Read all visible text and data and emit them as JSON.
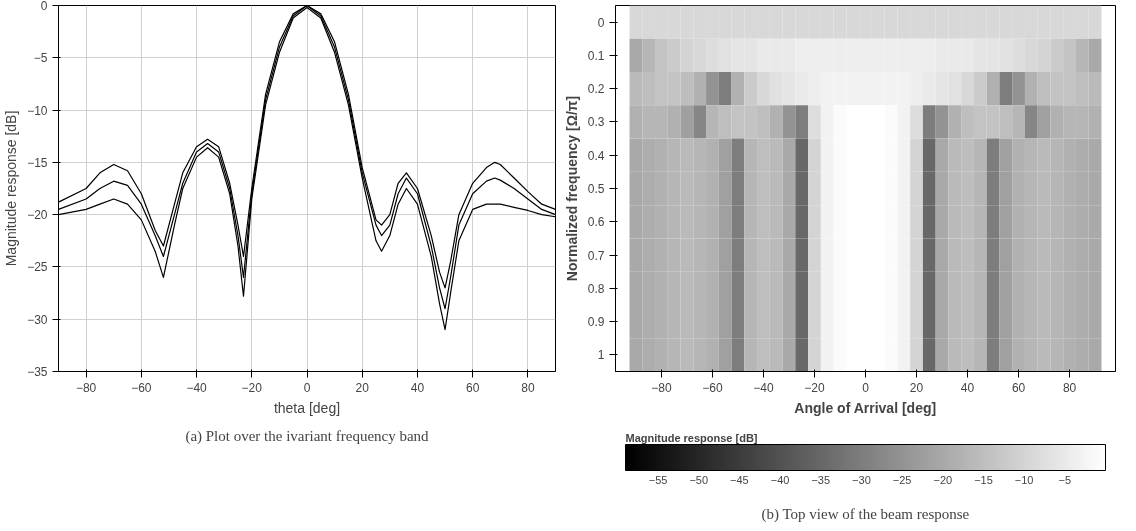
{
  "chart_data": [
    {
      "type": "line",
      "xlabel": "theta [deg]",
      "ylabel": "Magnitude response [dB]",
      "xlim": [
        -90,
        90
      ],
      "ylim": [
        -35,
        0
      ],
      "xticks": [
        -80,
        -60,
        -40,
        -20,
        0,
        20,
        40,
        60,
        80
      ],
      "yticks": [
        -35,
        -30,
        -25,
        -20,
        -15,
        -10,
        -5,
        0
      ],
      "grid": true,
      "annotations": [
        "(a) Plot over the ivariant frequency band"
      ],
      "series": [
        {
          "color": "#000000",
          "x": [
            -90,
            -80,
            -75,
            -70,
            -65,
            -60,
            -55,
            -52,
            -48,
            -45,
            -40,
            -36,
            -32,
            -28,
            -25,
            -23,
            -20,
            -15,
            -10,
            -5,
            0,
            5,
            10,
            15,
            20,
            25,
            27,
            30,
            33,
            36,
            40,
            45,
            48,
            50,
            52,
            55,
            60,
            65,
            68,
            70,
            75,
            80,
            85,
            90
          ],
          "values": [
            -18.8,
            -17.5,
            -16,
            -15.2,
            -15.8,
            -18,
            -21.5,
            -23,
            -19,
            -16,
            -13.5,
            -12.8,
            -13.5,
            -17,
            -21,
            -24,
            -17.5,
            -8.5,
            -3.5,
            -0.8,
            0,
            -0.8,
            -3.5,
            -8.5,
            -15.5,
            -20.5,
            -21,
            -20,
            -17,
            -16,
            -17.5,
            -22,
            -25.5,
            -27,
            -24.5,
            -20,
            -17,
            -15.5,
            -15,
            -15.2,
            -16.5,
            -17.8,
            -19,
            -19.5
          ]
        },
        {
          "color": "#000000",
          "x": [
            -90,
            -80,
            -75,
            -70,
            -65,
            -60,
            -55,
            -52,
            -48,
            -45,
            -40,
            -36,
            -32,
            -28,
            -25,
            -23,
            -20,
            -15,
            -10,
            -5,
            0,
            5,
            10,
            15,
            20,
            25,
            27,
            30,
            33,
            36,
            40,
            45,
            48,
            50,
            52,
            55,
            60,
            65,
            68,
            70,
            75,
            80,
            85,
            90
          ],
          "values": [
            -19.5,
            -18.5,
            -17.5,
            -16.8,
            -17.2,
            -19,
            -22,
            -24,
            -20,
            -17,
            -14,
            -13.2,
            -14,
            -17.5,
            -22,
            -26,
            -18,
            -9,
            -4,
            -1,
            0,
            -1,
            -4,
            -9,
            -16,
            -21,
            -22,
            -21,
            -18,
            -16.5,
            -18,
            -23,
            -27,
            -29,
            -26,
            -21,
            -18,
            -16.8,
            -16.5,
            -16.7,
            -17.5,
            -18.5,
            -19.5,
            -20
          ]
        },
        {
          "color": "#000000",
          "x": [
            -90,
            -80,
            -75,
            -70,
            -65,
            -60,
            -55,
            -52,
            -48,
            -45,
            -40,
            -36,
            -32,
            -28,
            -25,
            -23,
            -20,
            -15,
            -10,
            -5,
            0,
            5,
            10,
            15,
            20,
            25,
            27,
            30,
            33,
            36,
            40,
            45,
            48,
            50,
            52,
            55,
            60,
            65,
            68,
            70,
            75,
            80,
            85,
            90
          ],
          "values": [
            -20,
            -19.5,
            -19,
            -18.5,
            -19,
            -20.5,
            -23.5,
            -26,
            -21,
            -17.5,
            -14.5,
            -13.6,
            -14.5,
            -18,
            -23,
            -27.8,
            -18.5,
            -9.5,
            -4.5,
            -1.2,
            -0.2,
            -1.2,
            -4.5,
            -9.5,
            -16.5,
            -22.5,
            -23.5,
            -22,
            -19,
            -17.5,
            -19,
            -24,
            -28.5,
            -31,
            -27.5,
            -22.5,
            -19.5,
            -19,
            -19,
            -19,
            -19.3,
            -19.6,
            -20,
            -20.2
          ]
        }
      ]
    },
    {
      "type": "heatmap",
      "xlabel": "Angle of Arrival [deg]",
      "ylabel": "Normalized frequency [Ω/π]",
      "clabel": "Magnitude response [dB]",
      "x": [
        -90,
        -85,
        -80,
        -75,
        -70,
        -65,
        -60,
        -55,
        -50,
        -45,
        -40,
        -35,
        -30,
        -25,
        -20,
        -15,
        -10,
        -5,
        0,
        5,
        10,
        15,
        20,
        25,
        30,
        35,
        40,
        45,
        50,
        55,
        60,
        65,
        70,
        75,
        80,
        85,
        90
      ],
      "xlim": [
        -98,
        98
      ],
      "xticks": [
        -80,
        -60,
        -40,
        -20,
        0,
        20,
        40,
        60,
        80
      ],
      "clim": [
        -59,
        0
      ],
      "cticks": [
        -55,
        -50,
        -45,
        -40,
        -35,
        -30,
        -25,
        -20,
        -15,
        -10,
        -5
      ],
      "annotations": [
        "(b) Top view of the beam response"
      ],
      "y_categories": [
        "0",
        "0.1",
        "0.2",
        "0.3",
        "0.4",
        "0.5",
        "0.6",
        "0.7",
        "0.8",
        "0.9",
        "1"
      ],
      "cells": [
        [
          -9,
          -9,
          -9,
          -9,
          -9,
          -9,
          -9,
          -9,
          -9,
          -9,
          -9,
          -9,
          -9,
          -9,
          -9,
          -9,
          -9,
          -9,
          -9,
          -9,
          -9,
          -9,
          -9,
          -9,
          -9,
          -9,
          -9,
          -9,
          -9,
          -9,
          -9,
          -9,
          -9,
          -9,
          -9,
          -9,
          -9
        ],
        [
          -20,
          -17,
          -14,
          -12,
          -10,
          -9,
          -8,
          -7,
          -6,
          -6,
          -5,
          -5,
          -5,
          -4,
          -4,
          -4,
          -4,
          -4,
          -4,
          -4,
          -4,
          -4,
          -4,
          -4,
          -5,
          -5,
          -5,
          -6,
          -6,
          -7,
          -8,
          -9,
          -10,
          -12,
          -14,
          -17,
          -20
        ],
        [
          -16,
          -15,
          -14,
          -14,
          -15,
          -18,
          -25,
          -30,
          -18,
          -12,
          -9,
          -7,
          -6,
          -5,
          -4,
          -3,
          -3,
          -3,
          -3,
          -3,
          -3,
          -3,
          -4,
          -5,
          -6,
          -7,
          -9,
          -12,
          -18,
          -30,
          -25,
          -18,
          -15,
          -14,
          -14,
          -15,
          -16
        ],
        [
          -18,
          -17,
          -17,
          -18,
          -22,
          -28,
          -17,
          -15,
          -14,
          -14,
          -15,
          -18,
          -25,
          -30,
          -8,
          -3,
          -1,
          0,
          0,
          0,
          -1,
          -3,
          -8,
          -30,
          -25,
          -18,
          -15,
          -14,
          -14,
          -15,
          -17,
          -28,
          -22,
          -18,
          -17,
          -17,
          -18
        ],
        [
          -20,
          -19,
          -18,
          -17,
          -16,
          -17,
          -18,
          -22,
          -30,
          -17,
          -15,
          -16,
          -20,
          -35,
          -10,
          -3,
          -1,
          0,
          0,
          0,
          -1,
          -3,
          -10,
          -35,
          -20,
          -16,
          -15,
          -17,
          -30,
          -22,
          -18,
          -17,
          -16,
          -17,
          -18,
          -19,
          -20
        ],
        [
          -20,
          -19,
          -18,
          -17,
          -16,
          -17,
          -18,
          -22,
          -30,
          -17,
          -15,
          -16,
          -20,
          -35,
          -10,
          -3,
          -1,
          0,
          0,
          0,
          -1,
          -3,
          -10,
          -35,
          -20,
          -16,
          -15,
          -17,
          -30,
          -22,
          -18,
          -17,
          -16,
          -17,
          -18,
          -19,
          -20
        ],
        [
          -20,
          -19,
          -18,
          -17,
          -16,
          -17,
          -18,
          -22,
          -30,
          -17,
          -15,
          -16,
          -20,
          -35,
          -10,
          -3,
          -1,
          0,
          0,
          0,
          -1,
          -3,
          -10,
          -35,
          -20,
          -16,
          -15,
          -17,
          -30,
          -22,
          -18,
          -17,
          -16,
          -17,
          -18,
          -19,
          -20
        ],
        [
          -20,
          -19,
          -18,
          -17,
          -16,
          -17,
          -18,
          -22,
          -30,
          -17,
          -15,
          -16,
          -20,
          -35,
          -10,
          -3,
          -1,
          0,
          0,
          0,
          -1,
          -3,
          -10,
          -35,
          -20,
          -16,
          -15,
          -17,
          -30,
          -22,
          -18,
          -17,
          -16,
          -17,
          -18,
          -19,
          -20
        ],
        [
          -20,
          -19,
          -18,
          -17,
          -16,
          -17,
          -18,
          -22,
          -30,
          -17,
          -15,
          -16,
          -20,
          -35,
          -10,
          -3,
          -1,
          0,
          0,
          0,
          -1,
          -3,
          -10,
          -35,
          -20,
          -16,
          -15,
          -17,
          -30,
          -22,
          -18,
          -17,
          -16,
          -17,
          -18,
          -19,
          -20
        ],
        [
          -20,
          -19,
          -18,
          -17,
          -16,
          -17,
          -18,
          -22,
          -30,
          -17,
          -15,
          -16,
          -20,
          -35,
          -10,
          -3,
          -1,
          0,
          0,
          0,
          -1,
          -3,
          -10,
          -35,
          -20,
          -16,
          -15,
          -17,
          -30,
          -22,
          -18,
          -17,
          -16,
          -17,
          -18,
          -19,
          -20
        ],
        [
          -20,
          -19,
          -18,
          -17,
          -16,
          -17,
          -18,
          -22,
          -30,
          -17,
          -15,
          -16,
          -20,
          -35,
          -10,
          -3,
          -1,
          0,
          0,
          0,
          -1,
          -3,
          -10,
          -35,
          -20,
          -16,
          -15,
          -17,
          -30,
          -22,
          -18,
          -17,
          -16,
          -17,
          -18,
          -19,
          -20
        ]
      ]
    }
  ]
}
